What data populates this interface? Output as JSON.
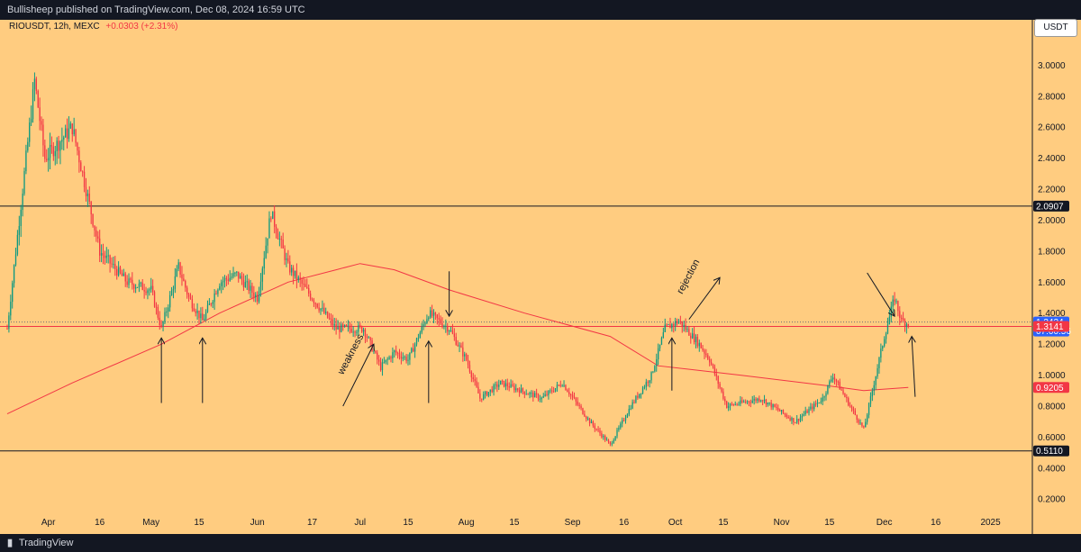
{
  "header": {
    "publisher_text": "Bullisheep published on TradingView.com, Dec 08, 2024 16:59 UTC"
  },
  "footer": {
    "brand": "TradingView"
  },
  "legend": {
    "symbol": "RIOUSDT, 12h, MEXC",
    "change": "+0.0303 (+2.31%)"
  },
  "axis": {
    "currency": "USDT"
  },
  "colors": {
    "background": "#ffcc80",
    "candle_up": "#0e9981",
    "candle_down": "#f23645",
    "ma": "#f23645",
    "price_line": "#f23645",
    "frame": "#131722"
  },
  "chart_data": {
    "type": "candlestick",
    "ylim": [
      0.12,
      3.2
    ],
    "yticks": [
      "3.0000",
      "2.8000",
      "2.6000",
      "2.4000",
      "2.2000",
      "2.0000",
      "1.8000",
      "1.6000",
      "1.4000",
      "1.2000",
      "1.0000",
      "0.8000",
      "0.6000",
      "0.4000",
      "0.2000"
    ],
    "xticks": [
      "Apr",
      "16",
      "May",
      "15",
      "Jun",
      "17",
      "Jul",
      "15",
      "Aug",
      "15",
      "Sep",
      "16",
      "Oct",
      "15",
      "Nov",
      "15",
      "Dec",
      "16",
      "2025"
    ],
    "price_path": [
      {
        "x": "Mar 20",
        "y": 1.3
      },
      {
        "x": "Mar 28",
        "y": 2.9
      },
      {
        "x": "Mar 31",
        "y": 2.4
      },
      {
        "x": "Apr 8",
        "y": 2.6
      },
      {
        "x": "Apr 12",
        "y": 2.2
      },
      {
        "x": "Apr 16",
        "y": 1.8
      },
      {
        "x": "Apr 24",
        "y": 1.6
      },
      {
        "x": "May 1",
        "y": 1.55
      },
      {
        "x": "May 4",
        "y": 1.3
      },
      {
        "x": "May 9",
        "y": 1.7
      },
      {
        "x": "May 12",
        "y": 1.5
      },
      {
        "x": "May 16",
        "y": 1.35
      },
      {
        "x": "May 21",
        "y": 1.6
      },
      {
        "x": "May 26",
        "y": 1.65
      },
      {
        "x": "Jun 1",
        "y": 1.5
      },
      {
        "x": "Jun 5",
        "y": 2.05
      },
      {
        "x": "Jun 10",
        "y": 1.7
      },
      {
        "x": "Jun 17",
        "y": 1.5
      },
      {
        "x": "Jun 24",
        "y": 1.3
      },
      {
        "x": "Jul 2",
        "y": 1.3
      },
      {
        "x": "Jul 7",
        "y": 1.05
      },
      {
        "x": "Jul 11",
        "y": 1.15
      },
      {
        "x": "Jul 15",
        "y": 1.1
      },
      {
        "x": "Jul 21",
        "y": 1.4
      },
      {
        "x": "Jul 27",
        "y": 1.3
      },
      {
        "x": "Aug 1",
        "y": 1.1
      },
      {
        "x": "Aug 5",
        "y": 0.85
      },
      {
        "x": "Aug 11",
        "y": 0.95
      },
      {
        "x": "Aug 23",
        "y": 0.85
      },
      {
        "x": "Aug 29",
        "y": 0.95
      },
      {
        "x": "Sep 6",
        "y": 0.7
      },
      {
        "x": "Sep 12",
        "y": 0.55
      },
      {
        "x": "Sep 18",
        "y": 0.8
      },
      {
        "x": "Sep 24",
        "y": 1.0
      },
      {
        "x": "Sep 28",
        "y": 1.3
      },
      {
        "x": "Oct 2",
        "y": 1.35
      },
      {
        "x": "Oct 8",
        "y": 1.2
      },
      {
        "x": "Oct 11",
        "y": 1.1
      },
      {
        "x": "Oct 16",
        "y": 0.8
      },
      {
        "x": "Oct 26",
        "y": 0.85
      },
      {
        "x": "Nov 5",
        "y": 0.7
      },
      {
        "x": "Nov 13",
        "y": 0.85
      },
      {
        "x": "Nov 16",
        "y": 1.0
      },
      {
        "x": "Nov 21",
        "y": 0.8
      },
      {
        "x": "Nov 25",
        "y": 0.65
      },
      {
        "x": "Dec 1",
        "y": 1.25
      },
      {
        "x": "Dec 4",
        "y": 1.5
      },
      {
        "x": "Dec 6",
        "y": 1.35
      },
      {
        "x": "Dec 8",
        "y": 1.33
      }
    ],
    "moving_average": [
      {
        "x": "Mar 20",
        "y": 0.75
      },
      {
        "x": "Apr 8",
        "y": 0.95
      },
      {
        "x": "May 4",
        "y": 1.2
      },
      {
        "x": "May 21",
        "y": 1.4
      },
      {
        "x": "Jun 10",
        "y": 1.6
      },
      {
        "x": "Jun 24",
        "y": 1.68
      },
      {
        "x": "Jul 1",
        "y": 1.72
      },
      {
        "x": "Jul 11",
        "y": 1.68
      },
      {
        "x": "Jul 27",
        "y": 1.55
      },
      {
        "x": "Aug 18",
        "y": 1.4
      },
      {
        "x": "Sep 12",
        "y": 1.25
      },
      {
        "x": "Sep 26",
        "y": 1.06
      },
      {
        "x": "Oct 20",
        "y": 1.0
      },
      {
        "x": "Nov 15",
        "y": 0.93
      },
      {
        "x": "Nov 25",
        "y": 0.9
      },
      {
        "x": "Dec 8",
        "y": 0.92
      }
    ],
    "horizontal_levels": [
      {
        "value": 2.0907,
        "label": "2.0907",
        "color": "#131722"
      },
      {
        "value": 0.511,
        "label": "0.5110",
        "color": "#131722"
      }
    ],
    "price_line": {
      "value": 1.3141,
      "label": "1.3141"
    },
    "dotted_line": 1.3424,
    "price_badges": [
      {
        "value": 1.3424,
        "label": "1.3424",
        "color": "#2962ff",
        "sublabel": "07:00:56"
      },
      {
        "value": 1.3141,
        "label": "1.3141",
        "color": "#f23645"
      },
      {
        "value": 0.9205,
        "label": "0.9205",
        "color": "#f23645"
      }
    ],
    "annotations": [
      {
        "text": "weakness",
        "x": "Jun 26",
        "y": 1.0,
        "angle": -62
      },
      {
        "text": "rejection",
        "x": "Oct 3",
        "y": 1.52,
        "angle": -62
      }
    ],
    "arrows": [
      {
        "x1": "May 4",
        "y1": 0.82,
        "x2": "May 4",
        "y2": 1.24
      },
      {
        "x1": "May 16",
        "y1": 0.82,
        "x2": "May 16",
        "y2": 1.24
      },
      {
        "x1": "Jun 26",
        "y1": 0.8,
        "x2": "Jul 5",
        "y2": 1.2
      },
      {
        "x1": "Jul 21",
        "y1": 0.82,
        "x2": "Jul 21",
        "y2": 1.22
      },
      {
        "x1": "Jul 27",
        "y1": 1.67,
        "x2": "Jul 27",
        "y2": 1.38
      },
      {
        "x1": "Sep 30",
        "y1": 0.9,
        "x2": "Sep 30",
        "y2": 1.24
      },
      {
        "x1": "Oct 5",
        "y1": 1.36,
        "x2": "Oct 14",
        "y2": 1.63
      },
      {
        "x1": "Nov 26",
        "y1": 1.66,
        "x2": "Dec 4",
        "y2": 1.38
      },
      {
        "x1": "Dec 10",
        "y1": 0.86,
        "x2": "Dec 9",
        "y2": 1.25
      }
    ]
  }
}
